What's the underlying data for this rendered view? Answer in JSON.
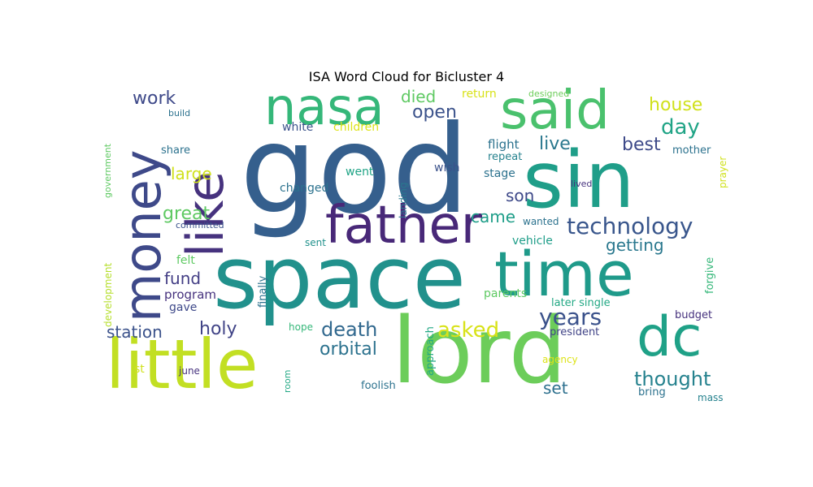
{
  "title": "ISA Word Cloud for Bicluster 4",
  "words": [
    {
      "text": "god",
      "color": "#355f8d"
    },
    {
      "text": "space",
      "color": "#21918c"
    },
    {
      "text": "sin",
      "color": "#1f9e89"
    },
    {
      "text": "time",
      "color": "#1f9a8a"
    },
    {
      "text": "lord",
      "color": "#6ccd5a"
    },
    {
      "text": "little",
      "color": "#c2df23"
    },
    {
      "text": "father",
      "color": "#482878"
    },
    {
      "text": "money",
      "color": "#3e4989"
    },
    {
      "text": "like",
      "color": "#46327e"
    },
    {
      "text": "nasa",
      "color": "#35b779"
    },
    {
      "text": "said",
      "color": "#4ac16d"
    },
    {
      "text": "dc",
      "color": "#1fa187"
    },
    {
      "text": "technology",
      "color": "#39568c"
    },
    {
      "text": "years",
      "color": "#3b528b"
    },
    {
      "text": "asked",
      "color": "#d8e219"
    },
    {
      "text": "death",
      "color": "#31688e"
    },
    {
      "text": "thought",
      "color": "#26828e"
    },
    {
      "text": "holy",
      "color": "#414487"
    },
    {
      "text": "orbital",
      "color": "#2c728e"
    },
    {
      "text": "station",
      "color": "#3b528b"
    },
    {
      "text": "great",
      "color": "#5ec962"
    },
    {
      "text": "house",
      "color": "#d0e11c"
    },
    {
      "text": "day",
      "color": "#20a486"
    },
    {
      "text": "work",
      "color": "#3e4989"
    },
    {
      "text": "open",
      "color": "#3b528b"
    },
    {
      "text": "died",
      "color": "#5ec962"
    },
    {
      "text": "live",
      "color": "#2a788e"
    },
    {
      "text": "best",
      "color": "#3e4a89"
    },
    {
      "text": "large",
      "color": "#d0e11c"
    },
    {
      "text": "son",
      "color": "#3e4989"
    },
    {
      "text": "came",
      "color": "#1f9e89"
    },
    {
      "text": "getting",
      "color": "#2a788e"
    },
    {
      "text": "fund",
      "color": "#433e85"
    },
    {
      "text": "set",
      "color": "#2d708e"
    },
    {
      "text": "program",
      "color": "#46327e"
    },
    {
      "text": "gave",
      "color": "#3e4989"
    },
    {
      "text": "felt",
      "color": "#5ec962"
    },
    {
      "text": "flight",
      "color": "#2c728e"
    },
    {
      "text": "repeat",
      "color": "#26828e"
    },
    {
      "text": "stage",
      "color": "#2c728e"
    },
    {
      "text": "wish",
      "color": "#3b528b"
    },
    {
      "text": "went",
      "color": "#20a486"
    },
    {
      "text": "changed",
      "color": "#2c728e"
    },
    {
      "text": "white",
      "color": "#3b528b"
    },
    {
      "text": "children",
      "color": "#dde318"
    },
    {
      "text": "share",
      "color": "#2c728e"
    },
    {
      "text": "build",
      "color": "#2c728e"
    },
    {
      "text": "committed",
      "color": "#3b528b"
    },
    {
      "text": "sent",
      "color": "#21918c"
    },
    {
      "text": "wanted",
      "color": "#2c728e"
    },
    {
      "text": "vehicle",
      "color": "#1f9e89"
    },
    {
      "text": "lived",
      "color": "#46327e"
    },
    {
      "text": "mother",
      "color": "#2c728e"
    },
    {
      "text": "return",
      "color": "#d8e219"
    },
    {
      "text": "designed",
      "color": "#6ccd5a"
    },
    {
      "text": "parents",
      "color": "#5ec962"
    },
    {
      "text": "later single",
      "color": "#22a884"
    },
    {
      "text": "budget",
      "color": "#46327e"
    },
    {
      "text": "president",
      "color": "#414487"
    },
    {
      "text": "agency",
      "color": "#dde318"
    },
    {
      "text": "bring",
      "color": "#2c728e"
    },
    {
      "text": "mass",
      "color": "#26828e"
    },
    {
      "text": "hope",
      "color": "#35b779"
    },
    {
      "text": "foolish",
      "color": "#2c728e"
    },
    {
      "text": "june",
      "color": "#46327e"
    },
    {
      "text": "st",
      "color": "#d0e11c"
    },
    {
      "text": "government",
      "color": "#5ec962"
    },
    {
      "text": "development",
      "color": "#b5de2b"
    },
    {
      "text": "landing",
      "color": "#2a788e"
    },
    {
      "text": "finally",
      "color": "#2c728e"
    },
    {
      "text": "approach",
      "color": "#22a884"
    },
    {
      "text": "room",
      "color": "#22a884"
    },
    {
      "text": "forgive",
      "color": "#35b779"
    },
    {
      "text": "prayer",
      "color": "#d0e11c"
    }
  ]
}
